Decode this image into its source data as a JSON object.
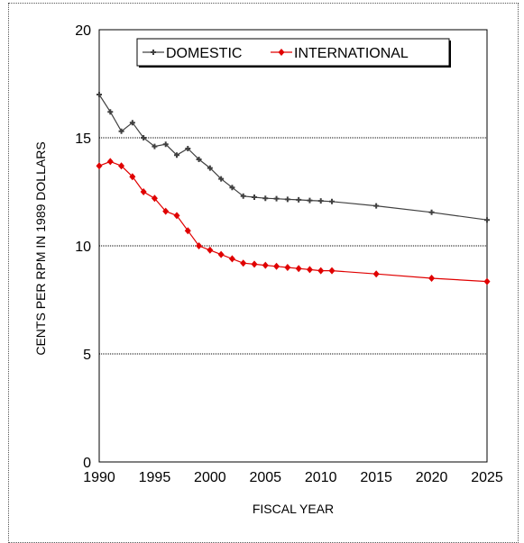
{
  "chart_data": {
    "type": "line",
    "title": "",
    "xlabel": "FISCAL YEAR",
    "ylabel": "CENTS PER RPM IN 1989 DOLLARS",
    "xlim": [
      1990,
      2025
    ],
    "ylim": [
      0,
      20
    ],
    "x_ticks": [
      "1990",
      "1995",
      "2000",
      "2005",
      "2010",
      "2015",
      "2020",
      "2025"
    ],
    "y_ticks": [
      "0",
      "5",
      "10",
      "15",
      "20"
    ],
    "grid": "horizontal dotted at 5, 10, 15",
    "legend_placement": "top-center",
    "series": [
      {
        "name": "DOMESTIC",
        "color": "#404040",
        "marker": "plus",
        "x": [
          1990,
          1991,
          1992,
          1993,
          1994,
          1995,
          1996,
          1997,
          1998,
          1999,
          2000,
          2001,
          2002,
          2003,
          2004,
          2005,
          2006,
          2007,
          2008,
          2009,
          2010,
          2011,
          2015,
          2020,
          2025
        ],
        "y": [
          17.0,
          16.2,
          15.3,
          15.7,
          15.0,
          14.6,
          14.7,
          14.2,
          14.5,
          14.0,
          13.6,
          13.1,
          12.7,
          12.3,
          12.25,
          12.2,
          12.18,
          12.15,
          12.13,
          12.1,
          12.08,
          12.05,
          11.85,
          11.55,
          11.2
        ]
      },
      {
        "name": "INTERNATIONAL",
        "color": "#e00000",
        "marker": "diamond",
        "x": [
          1990,
          1991,
          1992,
          1993,
          1994,
          1995,
          1996,
          1997,
          1998,
          1999,
          2000,
          2001,
          2002,
          2003,
          2004,
          2005,
          2006,
          2007,
          2008,
          2009,
          2010,
          2011,
          2015,
          2020,
          2025
        ],
        "y": [
          13.7,
          13.9,
          13.7,
          13.2,
          12.5,
          12.2,
          11.6,
          11.4,
          10.7,
          10.0,
          9.8,
          9.6,
          9.4,
          9.2,
          9.15,
          9.1,
          9.05,
          9.0,
          8.95,
          8.9,
          8.85,
          8.85,
          8.7,
          8.5,
          8.35
        ]
      }
    ]
  }
}
